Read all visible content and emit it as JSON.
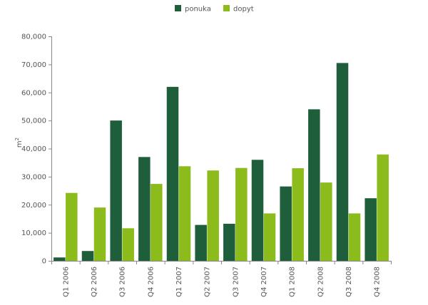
{
  "chart_data": {
    "type": "bar",
    "ylabel": "m",
    "ylabel_superscript": "2",
    "ylim": [
      0,
      80000
    ],
    "ytick_step": 10000,
    "ytick_labels": [
      "0",
      "10,000",
      "20,000",
      "30,000",
      "40,000",
      "50,000",
      "60,000",
      "70,000",
      "80,000"
    ],
    "categories": [
      "Q1 2006",
      "Q2 2006",
      "Q3 2006",
      "Q4 2006",
      "Q1 2007",
      "Q2 2007",
      "Q3 2007",
      "Q4 2007",
      "Q1 2008",
      "Q2 2008",
      "Q3 2008",
      "Q4 2008"
    ],
    "series": [
      {
        "name": "ponuka",
        "color": "#1e5e3a",
        "values": [
          1200,
          3500,
          50000,
          37000,
          62000,
          12800,
          13200,
          36000,
          26500,
          54000,
          70500,
          22300
        ]
      },
      {
        "name": "dopyt",
        "color": "#8cbb1c",
        "values": [
          24200,
          19000,
          11600,
          27400,
          33700,
          32200,
          33100,
          16900,
          33000,
          27900,
          16900,
          37900
        ]
      }
    ],
    "legend_position": "top-center",
    "grid": false
  }
}
